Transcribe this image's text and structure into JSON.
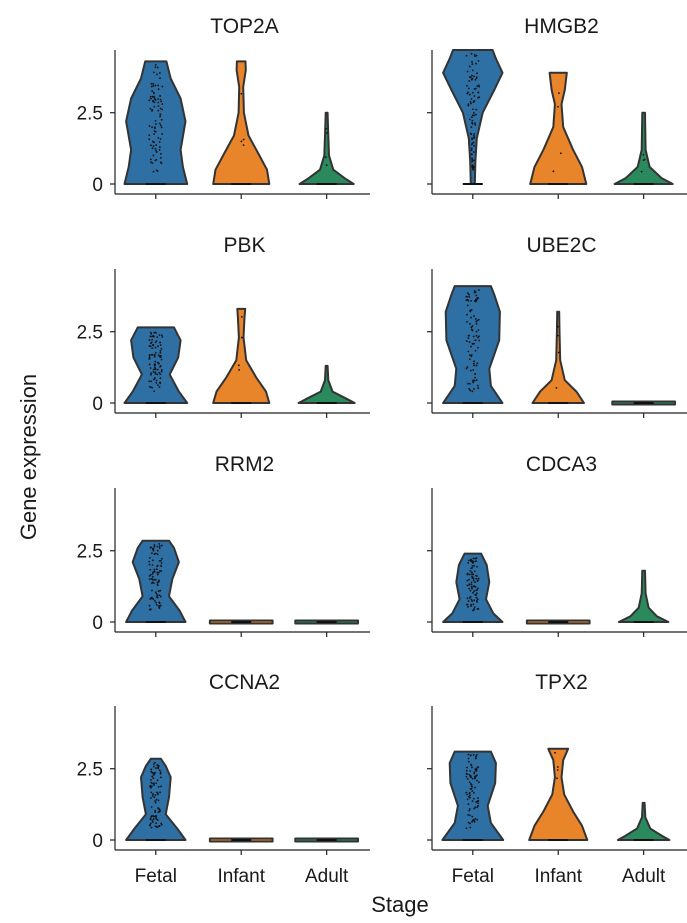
{
  "figure": {
    "ylabel": "Gene expression",
    "xlabel": "Stage"
  },
  "chart_data": {
    "type": "violin",
    "shared_categories": [
      "Fetal",
      "Infant",
      "Adult"
    ],
    "ylim": [
      0,
      4.7
    ],
    "yticks": [
      0,
      2.5
    ],
    "ytick_labels": [
      "0",
      "2.5"
    ],
    "colors": {
      "Fetal": "#2e6fa4",
      "Infant": "#e8842a",
      "Adult": "#2b8a5d"
    },
    "panels": [
      {
        "title": "TOP2A",
        "violins": [
          {
            "category": "Fetal",
            "min": 0,
            "max": 4.3,
            "profile": [
              [
                0,
                0.95
              ],
              [
                0.6,
                0.82
              ],
              [
                1.2,
                0.75
              ],
              [
                2.2,
                0.9
              ],
              [
                3.0,
                0.75
              ],
              [
                3.7,
                0.45
              ],
              [
                4.3,
                0.32
              ]
            ]
          },
          {
            "category": "Infant",
            "min": 0,
            "max": 4.3,
            "profile": [
              [
                0,
                0.85
              ],
              [
                0.5,
                0.78
              ],
              [
                1.0,
                0.55
              ],
              [
                1.7,
                0.22
              ],
              [
                2.5,
                0.08
              ],
              [
                3.4,
                0.06
              ],
              [
                4.0,
                0.14
              ],
              [
                4.3,
                0.13
              ]
            ]
          },
          {
            "category": "Adult",
            "min": 0,
            "max": 2.5,
            "profile": [
              [
                0,
                0.82
              ],
              [
                0.2,
                0.55
              ],
              [
                0.5,
                0.2
              ],
              [
                1.0,
                0.07
              ],
              [
                2.0,
                0.04
              ],
              [
                2.5,
                0.03
              ]
            ]
          }
        ]
      },
      {
        "title": "HMGB2",
        "violins": [
          {
            "category": "Fetal",
            "min": 0,
            "max": 4.7,
            "profile": [
              [
                0,
                0.06
              ],
              [
                0.8,
                0.08
              ],
              [
                1.6,
                0.12
              ],
              [
                2.5,
                0.3
              ],
              [
                3.3,
                0.65
              ],
              [
                3.9,
                0.9
              ],
              [
                4.4,
                0.7
              ],
              [
                4.7,
                0.6
              ]
            ]
          },
          {
            "category": "Infant",
            "min": 0,
            "max": 3.9,
            "profile": [
              [
                0,
                0.85
              ],
              [
                0.6,
                0.72
              ],
              [
                1.2,
                0.45
              ],
              [
                2.0,
                0.15
              ],
              [
                2.8,
                0.1
              ],
              [
                3.3,
                0.2
              ],
              [
                3.9,
                0.26
              ]
            ]
          },
          {
            "category": "Adult",
            "min": 0,
            "max": 2.5,
            "profile": [
              [
                0,
                0.88
              ],
              [
                0.2,
                0.55
              ],
              [
                0.6,
                0.18
              ],
              [
                1.2,
                0.06
              ],
              [
                2.5,
                0.04
              ]
            ]
          }
        ]
      },
      {
        "title": "PBK",
        "violins": [
          {
            "category": "Fetal",
            "min": 0,
            "max": 2.65,
            "profile": [
              [
                0,
                0.95
              ],
              [
                0.4,
                0.7
              ],
              [
                1.0,
                0.42
              ],
              [
                1.6,
                0.68
              ],
              [
                2.2,
                0.75
              ],
              [
                2.65,
                0.55
              ]
            ]
          },
          {
            "category": "Infant",
            "min": 0,
            "max": 3.3,
            "profile": [
              [
                0,
                0.85
              ],
              [
                0.4,
                0.75
              ],
              [
                0.9,
                0.45
              ],
              [
                1.5,
                0.15
              ],
              [
                2.3,
                0.07
              ],
              [
                3.0,
                0.1
              ],
              [
                3.3,
                0.12
              ]
            ]
          },
          {
            "category": "Adult",
            "min": 0,
            "max": 1.3,
            "profile": [
              [
                0,
                0.85
              ],
              [
                0.15,
                0.6
              ],
              [
                0.4,
                0.18
              ],
              [
                0.8,
                0.05
              ],
              [
                1.3,
                0.03
              ]
            ]
          }
        ]
      },
      {
        "title": "UBE2C",
        "violins": [
          {
            "category": "Fetal",
            "min": 0,
            "max": 4.1,
            "profile": [
              [
                0,
                0.9
              ],
              [
                0.6,
                0.55
              ],
              [
                1.2,
                0.5
              ],
              [
                2.2,
                0.8
              ],
              [
                3.2,
                0.82
              ],
              [
                3.8,
                0.65
              ],
              [
                4.1,
                0.55
              ]
            ]
          },
          {
            "category": "Infant",
            "min": 0,
            "max": 3.2,
            "profile": [
              [
                0,
                0.78
              ],
              [
                0.4,
                0.55
              ],
              [
                0.8,
                0.2
              ],
              [
                1.5,
                0.06
              ],
              [
                2.5,
                0.04
              ],
              [
                3.2,
                0.03
              ]
            ]
          },
          {
            "category": "Adult",
            "min": 0,
            "max": 0.05,
            "profile": [
              [
                0,
                0.95
              ],
              [
                0.05,
                0.95
              ]
            ]
          }
        ]
      },
      {
        "title": "RRM2",
        "violins": [
          {
            "category": "Fetal",
            "min": 0,
            "max": 2.85,
            "profile": [
              [
                0,
                0.9
              ],
              [
                0.4,
                0.72
              ],
              [
                0.9,
                0.4
              ],
              [
                1.5,
                0.5
              ],
              [
                2.1,
                0.7
              ],
              [
                2.6,
                0.55
              ],
              [
                2.85,
                0.4
              ]
            ]
          },
          {
            "category": "Infant",
            "min": 0,
            "max": 0.05,
            "profile": [
              [
                0,
                0.95
              ],
              [
                0.05,
                0.95
              ]
            ]
          },
          {
            "category": "Adult",
            "min": 0,
            "max": 0.05,
            "profile": [
              [
                0,
                0.95
              ],
              [
                0.05,
                0.95
              ]
            ]
          }
        ]
      },
      {
        "title": "CDCA3",
        "violins": [
          {
            "category": "Fetal",
            "min": 0,
            "max": 2.4,
            "profile": [
              [
                0,
                0.9
              ],
              [
                0.3,
                0.62
              ],
              [
                0.8,
                0.4
              ],
              [
                1.4,
                0.5
              ],
              [
                2.0,
                0.42
              ],
              [
                2.4,
                0.25
              ]
            ]
          },
          {
            "category": "Infant",
            "min": 0,
            "max": 0.05,
            "profile": [
              [
                0,
                0.95
              ],
              [
                0.05,
                0.95
              ]
            ]
          },
          {
            "category": "Adult",
            "min": 0,
            "max": 1.8,
            "profile": [
              [
                0,
                0.75
              ],
              [
                0.2,
                0.4
              ],
              [
                0.5,
                0.15
              ],
              [
                1.0,
                0.06
              ],
              [
                1.8,
                0.04
              ]
            ]
          }
        ]
      },
      {
        "title": "CCNA2",
        "violins": [
          {
            "category": "Fetal",
            "min": 0,
            "max": 2.85,
            "profile": [
              [
                0,
                0.9
              ],
              [
                0.4,
                0.65
              ],
              [
                0.9,
                0.3
              ],
              [
                1.5,
                0.4
              ],
              [
                2.2,
                0.45
              ],
              [
                2.6,
                0.3
              ],
              [
                2.85,
                0.15
              ]
            ]
          },
          {
            "category": "Infant",
            "min": 0,
            "max": 0.05,
            "profile": [
              [
                0,
                0.95
              ],
              [
                0.05,
                0.95
              ]
            ]
          },
          {
            "category": "Adult",
            "min": 0,
            "max": 0.05,
            "profile": [
              [
                0,
                0.95
              ],
              [
                0.05,
                0.95
              ]
            ]
          }
        ]
      },
      {
        "title": "TPX2",
        "violins": [
          {
            "category": "Fetal",
            "min": 0,
            "max": 3.1,
            "profile": [
              [
                0,
                0.92
              ],
              [
                0.6,
                0.55
              ],
              [
                1.2,
                0.45
              ],
              [
                2.0,
                0.68
              ],
              [
                2.7,
                0.7
              ],
              [
                3.1,
                0.55
              ]
            ]
          },
          {
            "category": "Infant",
            "min": 0,
            "max": 3.2,
            "profile": [
              [
                0,
                0.88
              ],
              [
                0.5,
                0.72
              ],
              [
                1.0,
                0.45
              ],
              [
                1.6,
                0.18
              ],
              [
                2.2,
                0.1
              ],
              [
                2.8,
                0.15
              ],
              [
                3.2,
                0.3
              ]
            ]
          },
          {
            "category": "Adult",
            "min": 0,
            "max": 1.3,
            "profile": [
              [
                0,
                0.78
              ],
              [
                0.15,
                0.55
              ],
              [
                0.4,
                0.2
              ],
              [
                0.8,
                0.05
              ],
              [
                1.3,
                0.03
              ]
            ]
          }
        ]
      }
    ]
  }
}
